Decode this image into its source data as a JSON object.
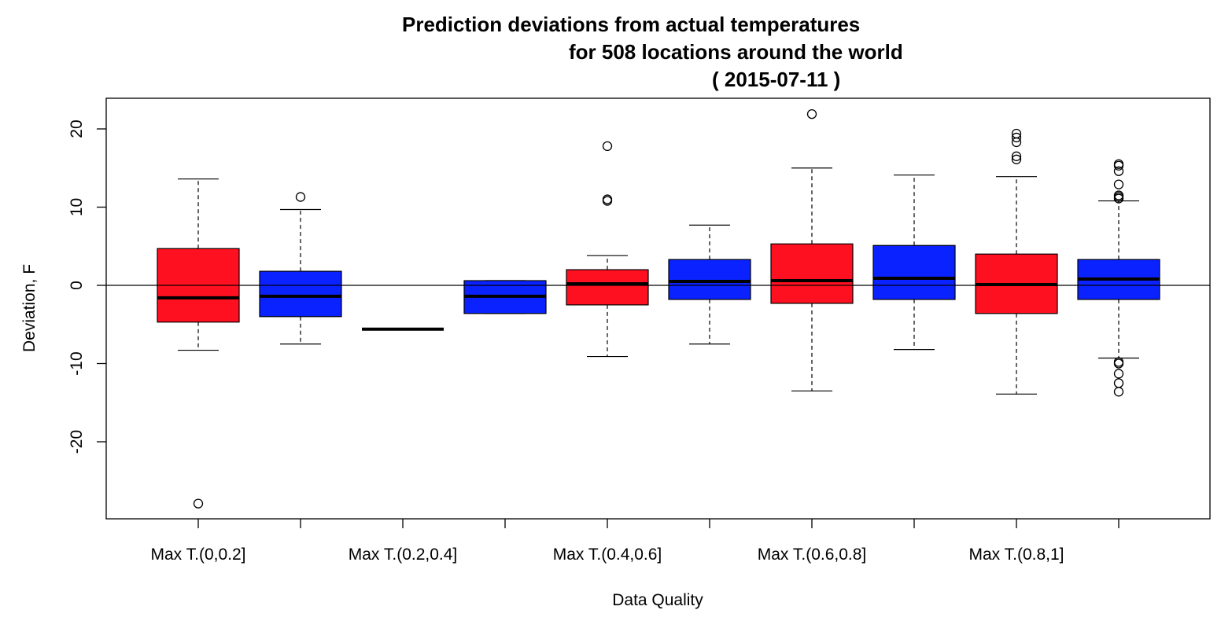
{
  "chart_data": {
    "type": "box",
    "title_lines": [
      "Prediction deviations from actual temperatures",
      "for 508 locations around the world",
      "( 2015-07-11 )"
    ],
    "xlabel": "Data Quality",
    "ylabel": "Deviation, F",
    "ylim": [
      -30,
      24
    ],
    "yticks": [
      -20,
      -10,
      0,
      10,
      20
    ],
    "reference_line_y": 0,
    "category_labels": [
      "Max T.(0,0.2]",
      "Max T.(0.2,0.4]",
      "Max T.(0.4,0.6]",
      "Max T.(0.6,0.8]",
      "Max T.(0.8,1]"
    ],
    "boxes": [
      {
        "color": "#ff1020",
        "min": -8.3,
        "q1": -4.7,
        "median": -1.6,
        "q3": 4.7,
        "max": 13.6,
        "outliers": [
          -27.9
        ]
      },
      {
        "color": "#0a22ff",
        "min": -7.5,
        "q1": -4.0,
        "median": -1.4,
        "q3": 1.8,
        "max": 9.7,
        "outliers": [
          11.3
        ]
      },
      {
        "color": "#ff1020",
        "min": -5.6,
        "q1": -5.6,
        "median": -5.6,
        "q3": -5.6,
        "max": -5.6,
        "outliers": []
      },
      {
        "color": "#0a22ff",
        "min": -3.6,
        "q1": -3.6,
        "median": -1.4,
        "q3": 0.6,
        "max": 0.6,
        "outliers": []
      },
      {
        "color": "#ff1020",
        "min": -9.1,
        "q1": -2.5,
        "median": 0.2,
        "q3": 2.0,
        "max": 3.8,
        "outliers": [
          17.8,
          11.0,
          10.8
        ]
      },
      {
        "color": "#0a22ff",
        "min": -7.5,
        "q1": -1.8,
        "median": 0.5,
        "q3": 3.3,
        "max": 7.7,
        "outliers": []
      },
      {
        "color": "#ff1020",
        "min": -13.5,
        "q1": -2.3,
        "median": 0.6,
        "q3": 5.3,
        "max": 15.0,
        "outliers": [
          21.9
        ]
      },
      {
        "color": "#0a22ff",
        "min": -8.2,
        "q1": -1.8,
        "median": 0.9,
        "q3": 5.1,
        "max": 14.1,
        "outliers": []
      },
      {
        "color": "#ff1020",
        "min": -13.9,
        "q1": -3.6,
        "median": 0.1,
        "q3": 4.0,
        "max": 13.9,
        "outliers": [
          19.4,
          18.9,
          18.3,
          16.5,
          16.1
        ]
      },
      {
        "color": "#0a22ff",
        "min": -9.3,
        "q1": -1.8,
        "median": 0.8,
        "q3": 3.3,
        "max": 10.8,
        "outliers": [
          15.5,
          15.3,
          14.6,
          12.9,
          11.5,
          11.3,
          11.1,
          -9.8,
          -10.0,
          -11.3,
          -12.5,
          -13.6
        ]
      }
    ]
  }
}
